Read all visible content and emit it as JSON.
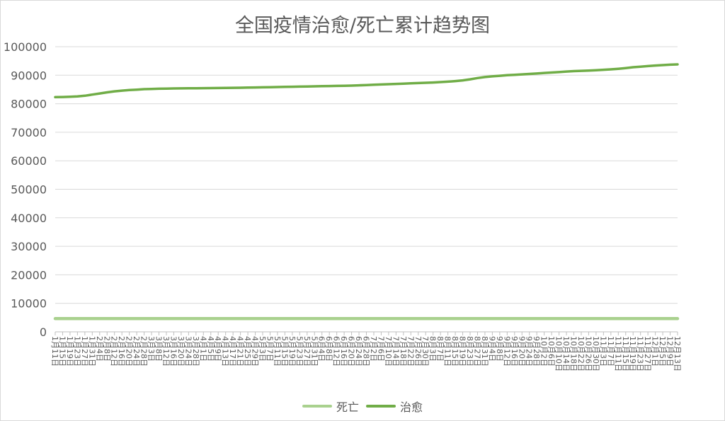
{
  "chart_data": {
    "type": "line",
    "title": "全国疫情治愈/死亡累计趋势图",
    "xlabel": "",
    "ylabel": "",
    "ylim": [
      0,
      100000
    ],
    "yticks": [
      "100000",
      "90000",
      "80000",
      "70000",
      "60000",
      "50000",
      "40000",
      "30000",
      "20000",
      "10000",
      "0"
    ],
    "grid": true,
    "legend_position": "bottom",
    "categories": [
      "1月11日",
      "1月15日",
      "1月19日",
      "1月23日",
      "1月27日",
      "1月31日",
      "2月4日",
      "2月8日",
      "2月12日",
      "2月16日",
      "2月20日",
      "2月24日",
      "2月28日",
      "3月3日",
      "3月8日",
      "3月12日",
      "3月16日",
      "3月20日",
      "3月24日",
      "3月28日",
      "4月1日",
      "4月5日",
      "4月9日",
      "4月13日",
      "4月17日",
      "4月21日",
      "4月25日",
      "4月29日",
      "5月3日",
      "5月7日",
      "5月11日",
      "5月15日",
      "5月19日",
      "5月23日",
      "5月27日",
      "5月31日",
      "6月4日",
      "6月8日",
      "6月12日",
      "6月16日",
      "6月20日",
      "6月24日",
      "6月28日",
      "7月2日",
      "7月6日",
      "7月10日",
      "7月14日",
      "7月18日",
      "7月22日",
      "7月26日",
      "7月30日",
      "8月3日",
      "8月7日",
      "8月11日",
      "8月15日",
      "8月19日",
      "8月23日",
      "8月27日",
      "8月31日",
      "9月4日",
      "9月8日",
      "9月12日",
      "9月16日",
      "9月20日",
      "9月24日",
      "9月28日",
      "10月2日",
      "10月6日",
      "10月10日",
      "10月14日",
      "10月18日",
      "10月22日",
      "10月26日",
      "10月30日",
      "11月3日",
      "11月7日",
      "11月11日",
      "11月15日",
      "11月19日",
      "11月23日",
      "11月27日",
      "12月1日",
      "12月5日",
      "12月9日",
      "12月13日"
    ],
    "series": [
      {
        "name": "死亡",
        "color": "#a9d18e",
        "values": [
          4634,
          4634,
          4634,
          4634,
          4634,
          4634,
          4634,
          4634,
          4634,
          4634,
          4634,
          4634,
          4634,
          4634,
          4634,
          4634,
          4634,
          4634,
          4634,
          4634,
          4634,
          4634,
          4634,
          4634,
          4634,
          4634,
          4634,
          4634,
          4634,
          4634,
          4634,
          4634,
          4634,
          4634,
          4634,
          4634,
          4634,
          4634,
          4634,
          4634,
          4634,
          4634,
          4634,
          4634,
          4634,
          4634,
          4634,
          4634,
          4634,
          4634,
          4634,
          4634,
          4634,
          4634,
          4634,
          4634,
          4634,
          4634,
          4634,
          4634,
          4634,
          4634,
          4634,
          4634,
          4634,
          4634,
          4634,
          4634,
          4634,
          4634,
          4634,
          4634,
          4634,
          4634,
          4634,
          4634,
          4634,
          4634,
          4634,
          4634,
          4634,
          4634,
          4634,
          4634,
          4634
        ]
      },
      {
        "name": "治愈",
        "color": "#70ad47",
        "values": [
          82300,
          82350,
          82420,
          82550,
          82800,
          83200,
          83600,
          84000,
          84350,
          84600,
          84800,
          84950,
          85100,
          85180,
          85250,
          85300,
          85350,
          85380,
          85400,
          85420,
          85450,
          85480,
          85520,
          85550,
          85580,
          85610,
          85650,
          85700,
          85750,
          85800,
          85850,
          85900,
          85950,
          86000,
          86050,
          86100,
          86150,
          86200,
          86250,
          86300,
          86350,
          86450,
          86550,
          86650,
          86750,
          86850,
          86950,
          87050,
          87150,
          87250,
          87350,
          87450,
          87600,
          87750,
          87950,
          88200,
          88550,
          89000,
          89350,
          89600,
          89800,
          90000,
          90150,
          90300,
          90450,
          90600,
          90800,
          90950,
          91100,
          91300,
          91450,
          91550,
          91650,
          91750,
          91900,
          92050,
          92250,
          92500,
          92800,
          93000,
          93200,
          93400,
          93550,
          93700,
          93800
        ]
      }
    ]
  }
}
